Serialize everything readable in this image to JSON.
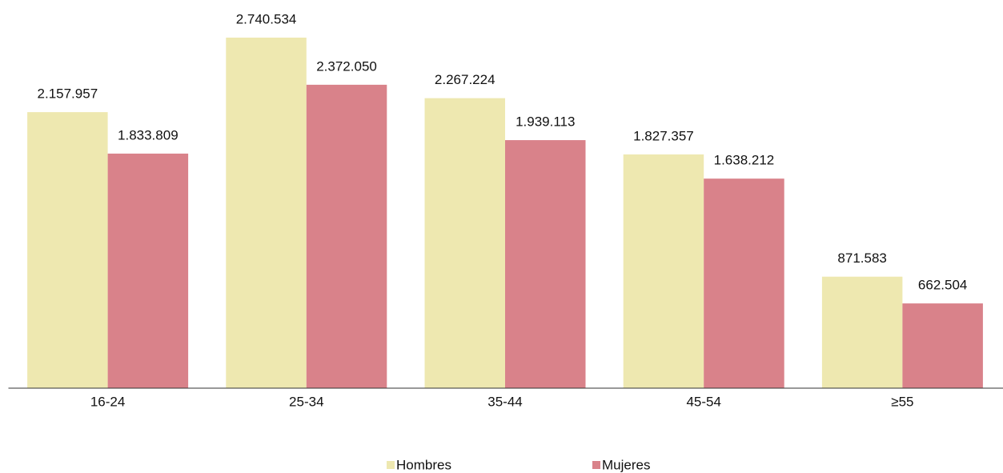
{
  "chart_data": {
    "type": "bar",
    "categories": [
      "16-24",
      "25-34",
      "35-44",
      "45-54",
      "≥55"
    ],
    "series": [
      {
        "name": "Hombres",
        "color": "#eee8b0",
        "values": [
          2157957,
          2740534,
          2267224,
          1827357,
          871583
        ],
        "value_labels": [
          "2.157.957",
          "2.740.534",
          "2.267.224",
          "1.827.357",
          "871.583"
        ]
      },
      {
        "name": "Mujeres",
        "color": "#d9828a",
        "values": [
          1833809,
          2372050,
          1939113,
          1638212,
          662504
        ],
        "value_labels": [
          "1.833.809",
          "2.372.050",
          "1.939.113",
          "1.638.212",
          "662.504"
        ]
      }
    ],
    "legend": "bottom"
  }
}
